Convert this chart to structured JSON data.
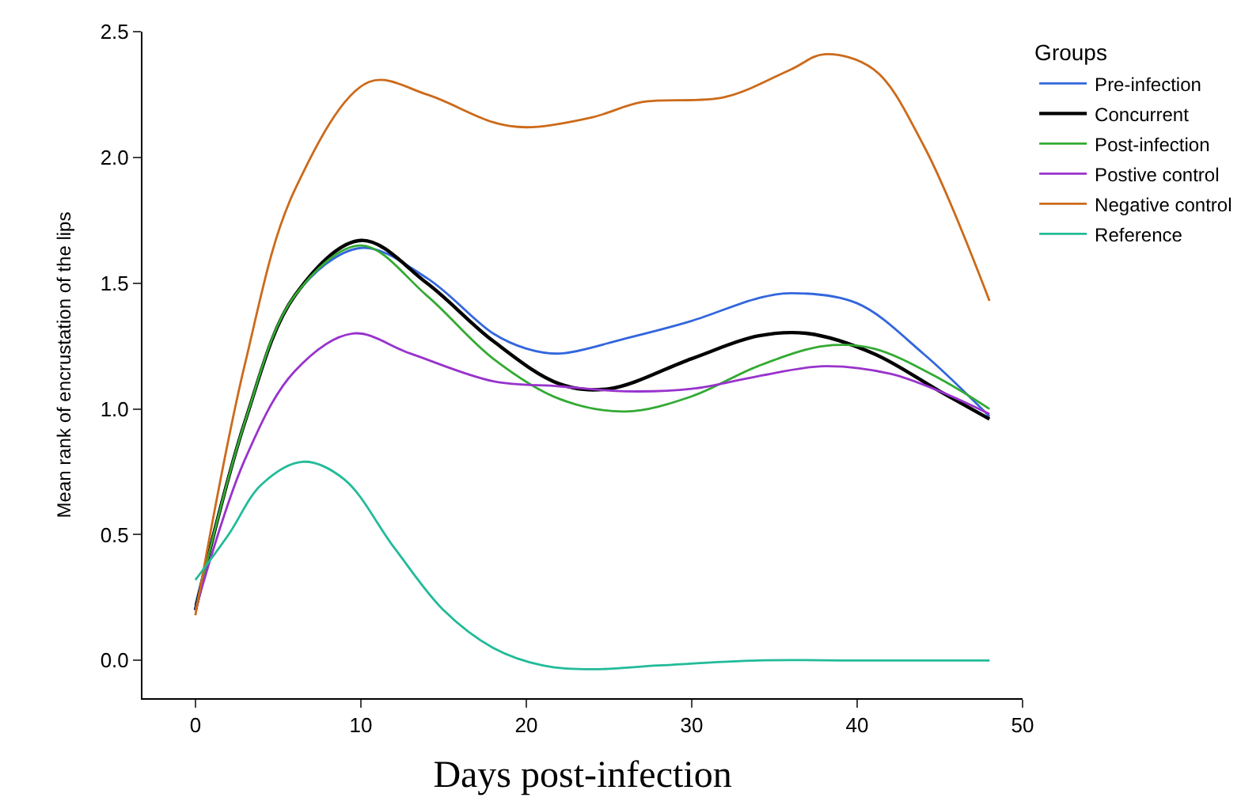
{
  "chart_data": {
    "type": "line",
    "xlabel": "Days post-infection",
    "ylabel": "Mean rank of encrustation of the lips",
    "legend_title": "Groups",
    "legend": "right",
    "marker": "none",
    "line_style": "solid",
    "xlim": [
      -3.2,
      50
    ],
    "xticks": [
      0,
      10,
      20,
      30,
      40,
      50
    ],
    "ylim": [
      -0.15,
      2.5
    ],
    "yticks": [
      {
        "value": 0,
        "label": "0.0"
      },
      {
        "value": 0.5,
        "label": "0.5"
      },
      {
        "value": 1,
        "label": "1.0"
      },
      {
        "value": 1.5,
        "label": "1.5"
      },
      {
        "value": 2,
        "label": "2.0"
      },
      {
        "value": 2.5,
        "label": "2.5"
      }
    ],
    "series": [
      {
        "name": "Pre-infection",
        "color": "#3366dd",
        "x": [
          0,
          3,
          6,
          10,
          14,
          18,
          20,
          22,
          26,
          30,
          34,
          36,
          40,
          44,
          48
        ],
        "values": [
          0.22,
          0.95,
          1.45,
          1.64,
          1.52,
          1.3,
          1.24,
          1.22,
          1.28,
          1.35,
          1.44,
          1.46,
          1.42,
          1.22,
          0.97
        ]
      },
      {
        "name": "Concurrent",
        "color": "#000000",
        "x": [
          0,
          3,
          6,
          10,
          14,
          18,
          22,
          25,
          30,
          34,
          37,
          41,
          45,
          48
        ],
        "values": [
          0.2,
          0.95,
          1.45,
          1.67,
          1.5,
          1.27,
          1.1,
          1.08,
          1.2,
          1.29,
          1.3,
          1.22,
          1.07,
          0.96
        ]
      },
      {
        "name": "Post-infection",
        "color": "#33aa33",
        "x": [
          0,
          3,
          6,
          10,
          14,
          18,
          22,
          26,
          30,
          34,
          38,
          41,
          45,
          48
        ],
        "values": [
          0.2,
          0.95,
          1.45,
          1.65,
          1.45,
          1.2,
          1.04,
          0.99,
          1.05,
          1.17,
          1.25,
          1.24,
          1.12,
          1.0
        ]
      },
      {
        "name": "Postive control",
        "color": "#9933cc",
        "x": [
          0,
          3,
          6,
          9.5,
          13,
          18,
          22,
          26,
          30,
          34,
          38,
          42,
          45,
          48
        ],
        "values": [
          0.2,
          0.8,
          1.15,
          1.3,
          1.22,
          1.11,
          1.09,
          1.07,
          1.08,
          1.13,
          1.17,
          1.14,
          1.07,
          0.98
        ]
      },
      {
        "name": "Negative control",
        "color": "#cc6a1a",
        "x": [
          0,
          3,
          6,
          10.5,
          14,
          18,
          20,
          24,
          27,
          32,
          36,
          38,
          41,
          44,
          48
        ],
        "values": [
          0.18,
          1.18,
          1.87,
          2.3,
          2.25,
          2.14,
          2.12,
          2.16,
          2.22,
          2.24,
          2.35,
          2.41,
          2.35,
          2.05,
          1.43
        ]
      },
      {
        "name": "Reference",
        "color": "#22bb99",
        "x": [
          0,
          2,
          4,
          6.5,
          9,
          12,
          15,
          18,
          21,
          24,
          28,
          34,
          40,
          48
        ],
        "values": [
          0.32,
          0.5,
          0.7,
          0.79,
          0.72,
          0.45,
          0.2,
          0.05,
          -0.02,
          -0.035,
          -0.02,
          0.0,
          0.0,
          0.0
        ]
      }
    ]
  }
}
